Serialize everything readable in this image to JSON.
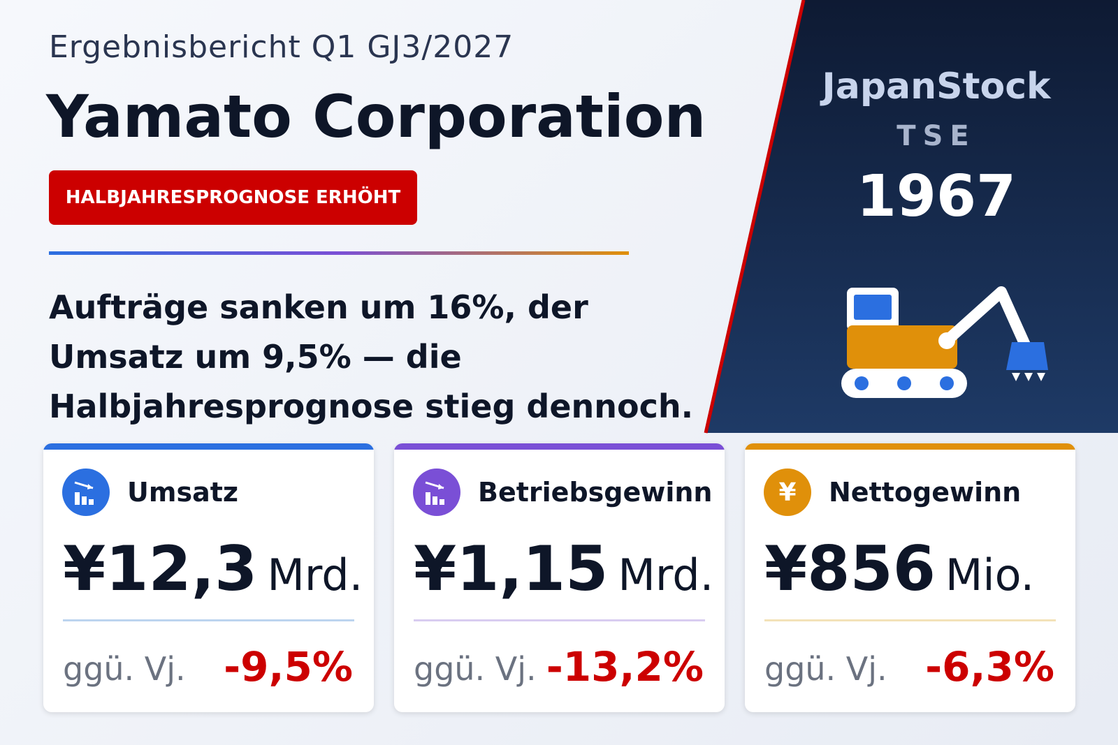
{
  "header": {
    "subtitle": "Ergebnisbericht Q1 GJ3/2027",
    "title": "Yamato Corporation",
    "badge": "HALBJAHRESPROGNOSE ERHÖHT"
  },
  "headline": [
    "Aufträge sanken um 16%, der",
    "Umsatz um 9,5% — die",
    "Halbjahresprognose stieg dennoch."
  ],
  "brand": {
    "name": "JapanStock",
    "exchange": "TSE",
    "code": "1967"
  },
  "cards": [
    {
      "label": "Umsatz",
      "value": "¥12,3",
      "unit": "Mrd.",
      "compare": "ggü. Vj.",
      "change": "-9,5%"
    },
    {
      "label": "Betriebsgewinn",
      "value": "¥1,15",
      "unit": "Mrd.",
      "compare": "ggü. Vj.",
      "change": "-13,2%"
    },
    {
      "label": "Nettogewinn",
      "icon": "¥",
      "value": "¥856",
      "unit": "Mio.",
      "compare": "ggü. Vj.",
      "change": "-6,3%"
    }
  ]
}
